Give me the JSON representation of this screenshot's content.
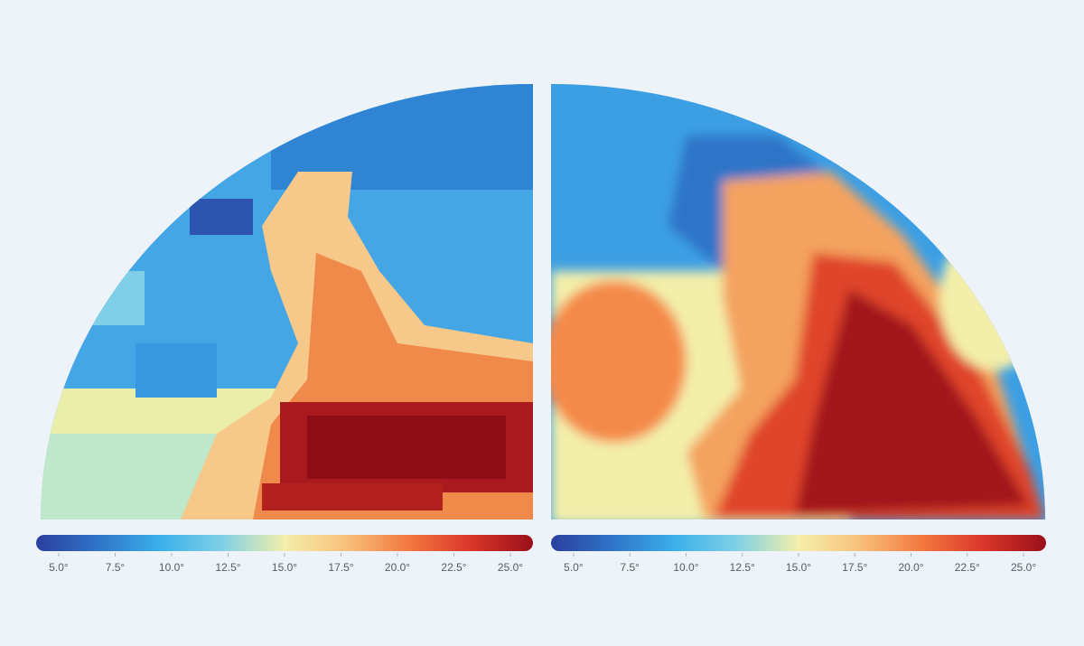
{
  "colormap": [
    "#2b3f9e",
    "#2f74c8",
    "#3bb0ea",
    "#7fd0e6",
    "#f3efaa",
    "#f8c07a",
    "#f2783f",
    "#d9362a",
    "#9a0f1a"
  ],
  "panels": [
    {
      "colorbar": {
        "range": [
          4,
          26
        ],
        "ticks": [
          {
            "value": 5,
            "label": "5.0°"
          },
          {
            "value": 7.5,
            "label": "7.5°"
          },
          {
            "value": 10,
            "label": "10.0°"
          },
          {
            "value": 12.5,
            "label": "12.5°"
          },
          {
            "value": 15,
            "label": "15.0°"
          },
          {
            "value": 17.5,
            "label": "17.5°"
          },
          {
            "value": 20,
            "label": "20.0°"
          },
          {
            "value": 22.5,
            "label": "22.5°"
          },
          {
            "value": 25,
            "label": "25.0°"
          }
        ]
      }
    },
    {
      "colorbar": {
        "range": [
          4,
          26
        ],
        "ticks": [
          {
            "value": 5,
            "label": "5.0°"
          },
          {
            "value": 7.5,
            "label": "7.5°"
          },
          {
            "value": 10,
            "label": "10.0°"
          },
          {
            "value": 12.5,
            "label": "12.5°"
          },
          {
            "value": 15,
            "label": "15.0°"
          },
          {
            "value": 17.5,
            "label": "17.5°"
          },
          {
            "value": 20,
            "label": "20.0°"
          },
          {
            "value": 22.5,
            "label": "22.5°"
          },
          {
            "value": 25,
            "label": "25.0°"
          }
        ]
      }
    }
  ]
}
